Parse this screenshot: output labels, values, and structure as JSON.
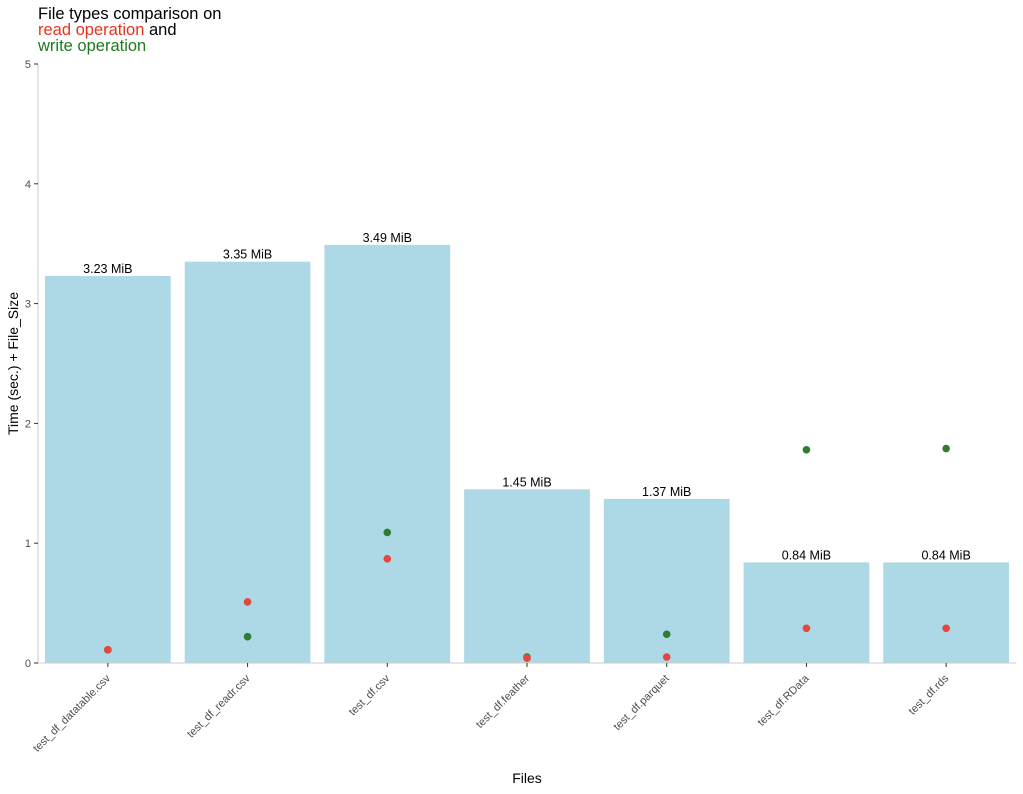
{
  "chart_data": {
    "type": "bar",
    "title": {
      "line1": "File types comparison on",
      "read_label": "read operation",
      "connector": " and",
      "write_label": "write operation"
    },
    "xlabel": "Files",
    "ylabel": "Time (sec.) + File_Size",
    "ylim": [
      0,
      5
    ],
    "yticks": [
      0,
      1,
      2,
      3,
      4,
      5
    ],
    "grid": false,
    "categories": [
      "test_df_datatable.csv",
      "test_df_readr.csv",
      "test_df.csv",
      "test_df.feather",
      "test_df.parquet",
      "test_df.RData",
      "test_df.rds"
    ],
    "series": [
      {
        "name": "File_Size",
        "kind": "bar",
        "values": [
          3.23,
          3.35,
          3.49,
          1.45,
          1.37,
          0.84,
          0.84
        ],
        "labels": [
          "3.23 MiB",
          "3.35 MiB",
          "3.49 MiB",
          "1.45 MiB",
          "1.37 MiB",
          "0.84 MiB",
          "0.84 MiB"
        ]
      },
      {
        "name": "read operation",
        "kind": "point",
        "values": [
          0.11,
          0.51,
          0.87,
          0.04,
          0.05,
          0.29,
          0.29
        ]
      },
      {
        "name": "write operation",
        "kind": "point",
        "values": [
          0.11,
          0.22,
          1.09,
          0.05,
          0.24,
          1.78,
          1.79
        ]
      }
    ],
    "colors": {
      "bar": "#add8e6",
      "read": "#e8453c",
      "write": "#2e7d32",
      "axis": "#cccccc",
      "text": "#4d4d4d"
    }
  }
}
